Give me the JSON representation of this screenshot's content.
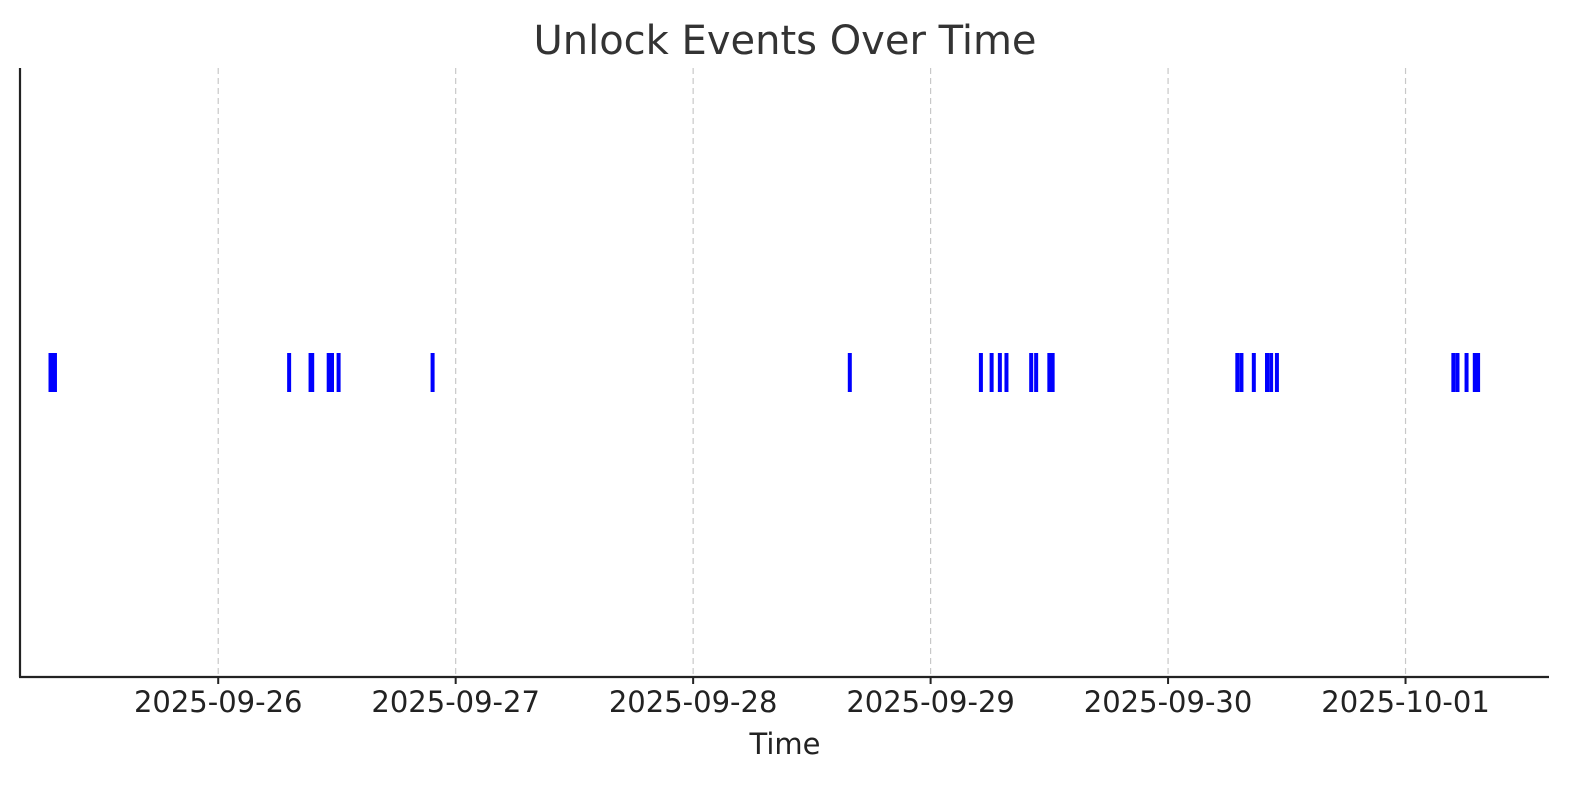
{
  "chart_data": {
    "type": "event",
    "title": "Unlock Events Over Time",
    "xlabel": "Time",
    "ylabel": "",
    "x_ticks": [
      "2025-09-26",
      "2025-09-27",
      "2025-09-28",
      "2025-09-29",
      "2025-09-30",
      "2025-10-01"
    ],
    "xlim": [
      "2025-09-25 03:58",
      "2025-10-01 14:30"
    ],
    "grid": "x-only, dashed",
    "legend": "none",
    "color": "#0000ff",
    "events": [
      "2025-09-25 07:03",
      "2025-09-25 07:20",
      "2025-09-25 07:30",
      "2025-09-26 07:10",
      "2025-09-26 09:20",
      "2025-09-26 09:30",
      "2025-09-26 11:10",
      "2025-09-26 11:30",
      "2025-09-26 12:10",
      "2025-09-26 21:40",
      "2025-09-28 15:50",
      "2025-09-29 05:05",
      "2025-09-29 06:10",
      "2025-09-29 07:00",
      "2025-09-29 07:40",
      "2025-09-29 10:10",
      "2025-09-29 10:40",
      "2025-09-29 12:00",
      "2025-09-29 12:20",
      "2025-09-30 07:00",
      "2025-09-30 07:25",
      "2025-09-30 08:40",
      "2025-09-30 10:00",
      "2025-09-30 10:25",
      "2025-09-30 11:00",
      "2025-10-01 04:50",
      "2025-10-01 05:15",
      "2025-10-01 06:10",
      "2025-10-01 07:00",
      "2025-10-01 07:20"
    ]
  }
}
